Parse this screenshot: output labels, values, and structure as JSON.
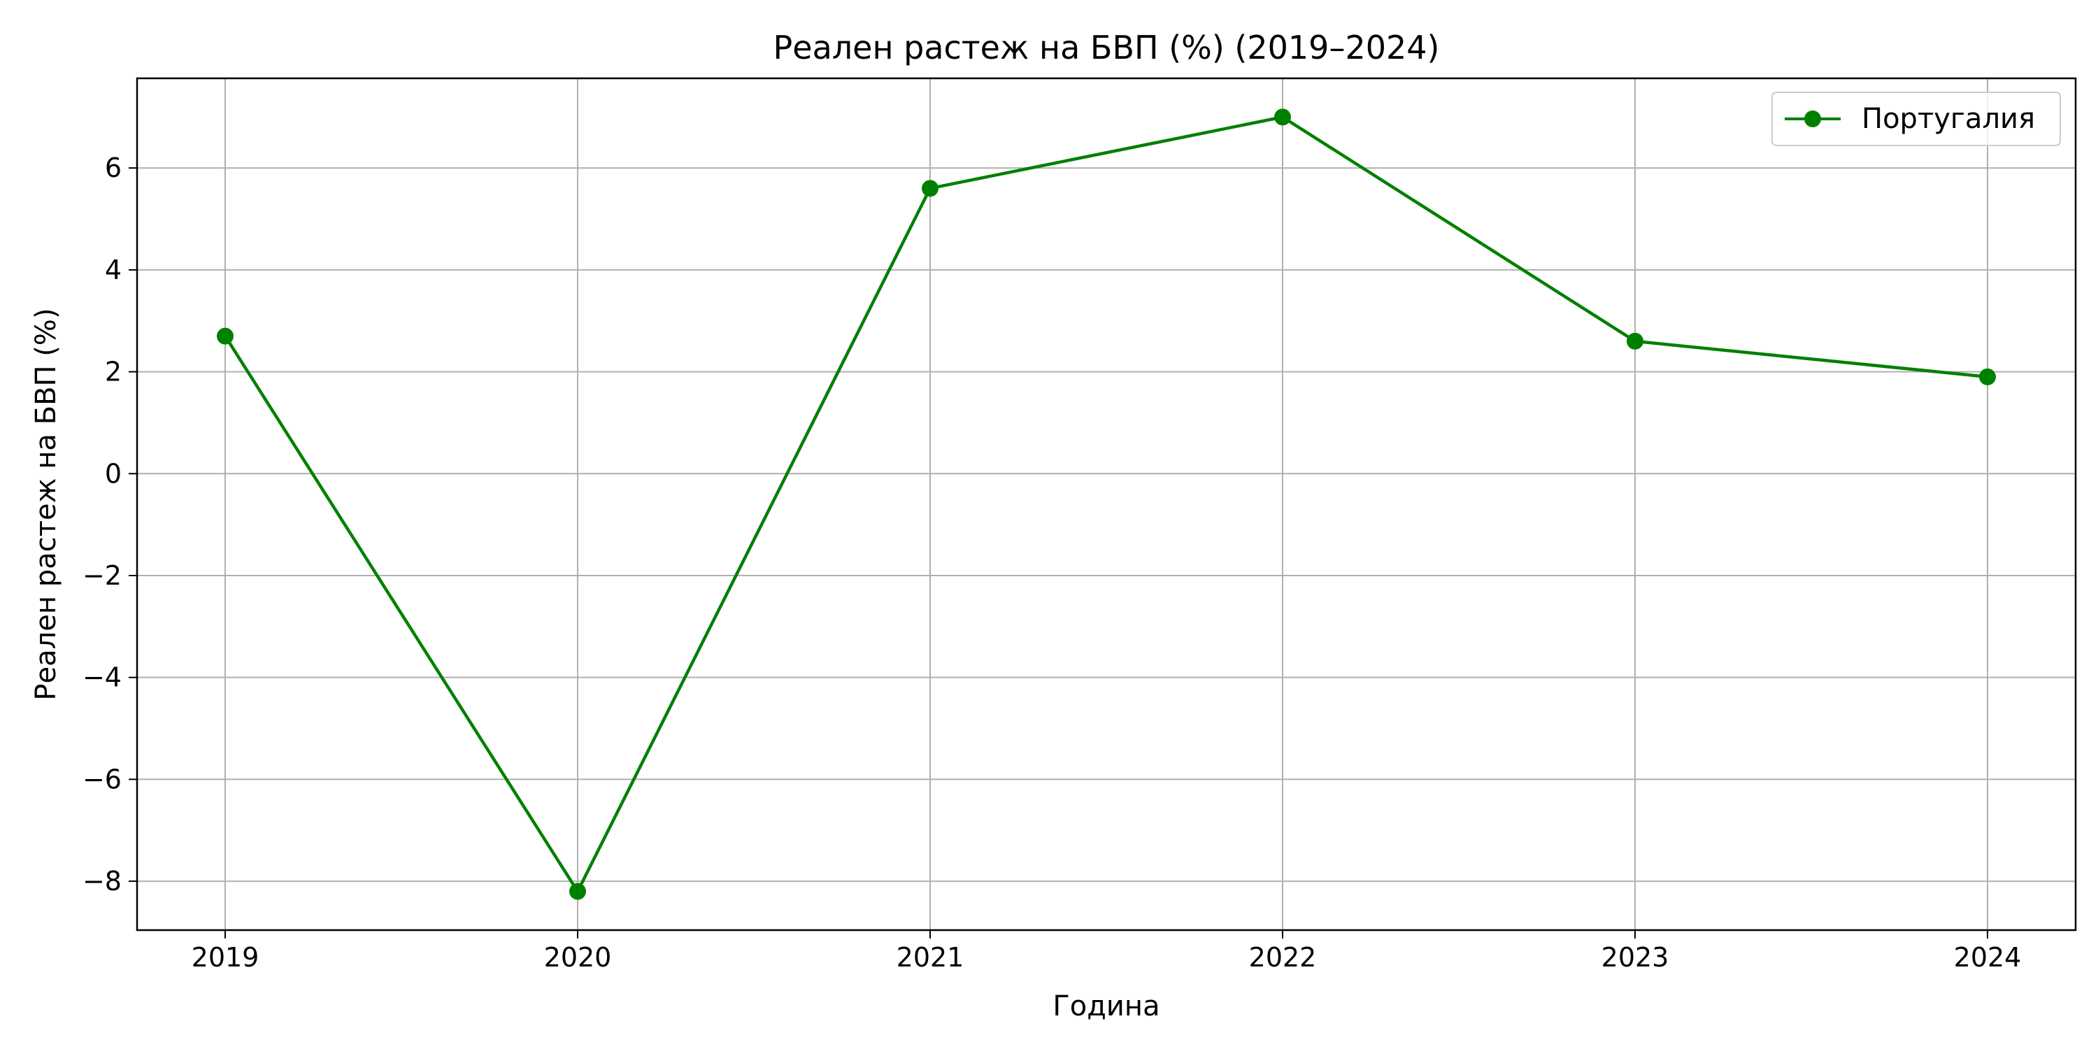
{
  "chart_data": {
    "type": "line",
    "title": "Реален растеж на БВП (%) (2019–2024)",
    "xlabel": "Година",
    "ylabel": "Реален растеж на БВП (%)",
    "x": [
      2019,
      2020,
      2021,
      2022,
      2023,
      2024
    ],
    "x_tick_labels": [
      "2019",
      "2020",
      "2021",
      "2022",
      "2023",
      "2024"
    ],
    "y_ticks": [
      -8,
      -6,
      -4,
      -2,
      0,
      2,
      4,
      6
    ],
    "y_tick_labels": [
      "−8",
      "−6",
      "−4",
      "−2",
      "0",
      "2",
      "4",
      "6"
    ],
    "xlim": [
      2018.75,
      2024.25
    ],
    "ylim": [
      -8.96,
      7.76
    ],
    "grid": true,
    "legend_position": "top-right",
    "series": [
      {
        "name": "Португалия",
        "values": [
          2.7,
          -8.2,
          5.6,
          7.0,
          2.6,
          1.9
        ],
        "color": "#008000",
        "marker": "circle"
      }
    ]
  }
}
